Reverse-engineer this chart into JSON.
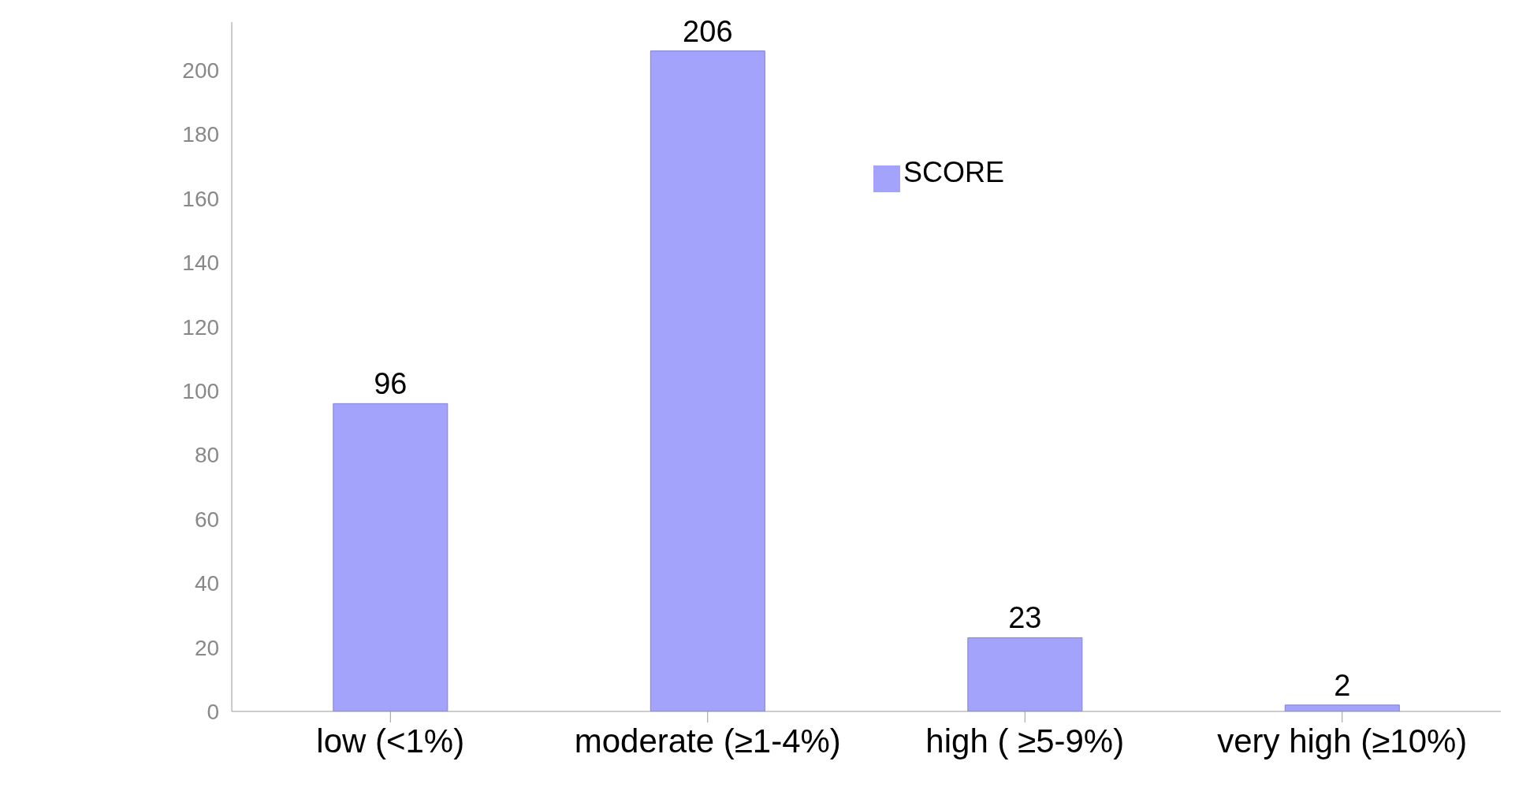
{
  "chart_data": {
    "type": "bar",
    "categories": [
      "low (<1%)",
      "moderate (≥1-4%)",
      "high ( ≥5-9%)",
      "very high (≥10%)"
    ],
    "series": [
      {
        "name": "SCORE",
        "color": "#a3a3fb",
        "values": [
          96,
          206,
          23,
          2
        ]
      }
    ],
    "ylim": [
      0,
      215
    ],
    "yticks": [
      0,
      20,
      40,
      60,
      80,
      100,
      120,
      140,
      160,
      180,
      200
    ],
    "grid": false,
    "legend": "top right",
    "data_labels": true
  }
}
